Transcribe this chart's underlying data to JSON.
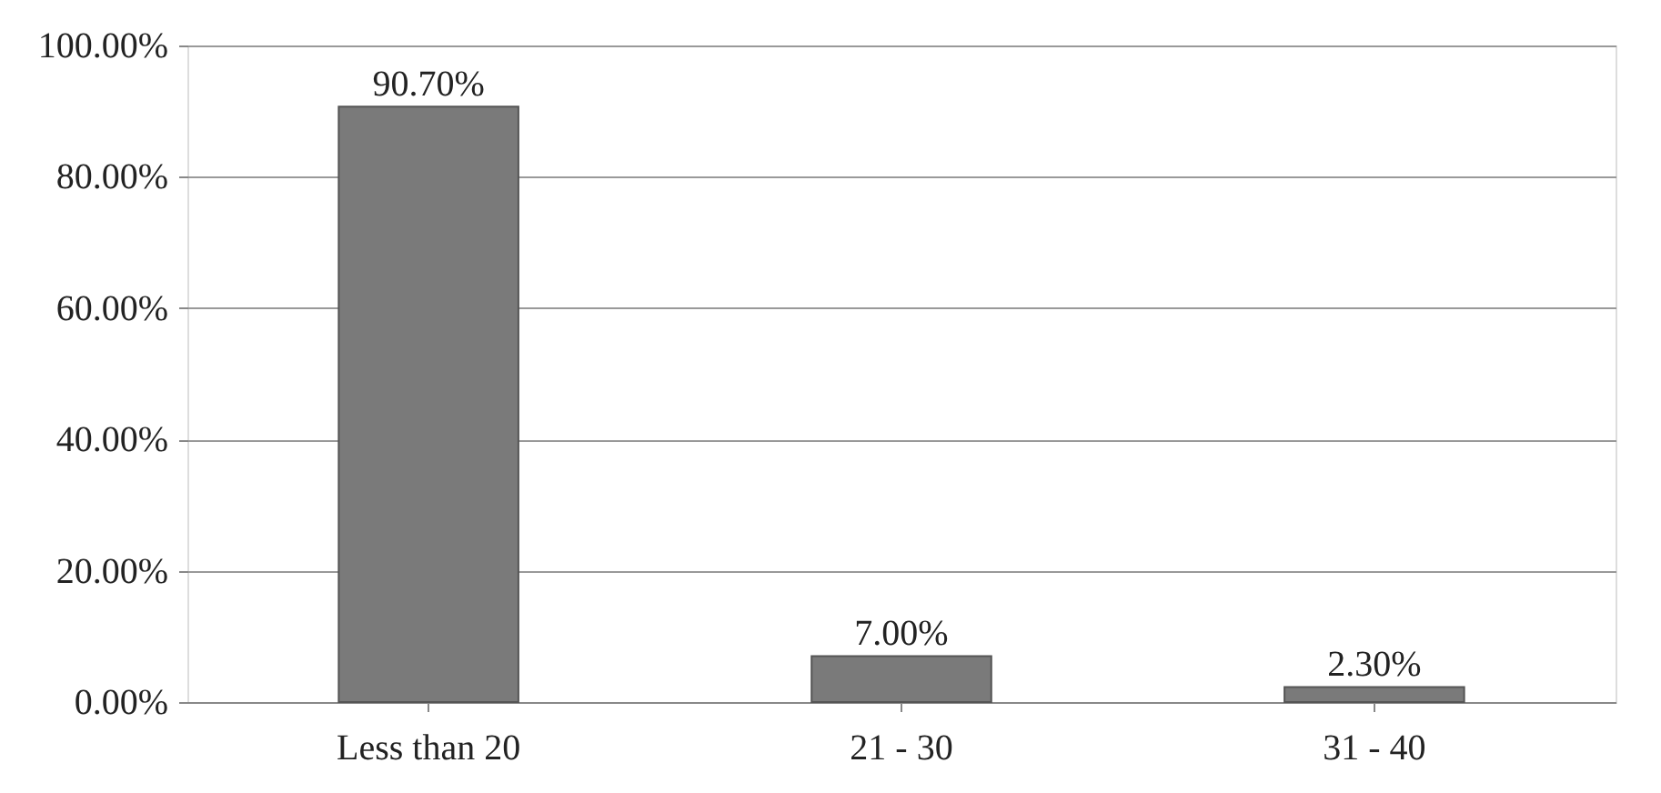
{
  "chart_data": {
    "type": "bar",
    "categories": [
      "Less than 20",
      "21 - 30",
      "31 - 40"
    ],
    "values": [
      90.7,
      7.0,
      2.3
    ],
    "value_labels": [
      "90.70%",
      "7.00%",
      "2.30%"
    ],
    "color": "#7a7a7a",
    "ylim": [
      0,
      100
    ],
    "yticks": [
      {
        "value": 0,
        "label": "0.00%"
      },
      {
        "value": 20,
        "label": "20.00%"
      },
      {
        "value": 40,
        "label": "40.00%"
      },
      {
        "value": 60,
        "label": "60.00%"
      },
      {
        "value": 80,
        "label": "80.00%"
      },
      {
        "value": 100,
        "label": "100.00%"
      }
    ],
    "grid": "y"
  }
}
